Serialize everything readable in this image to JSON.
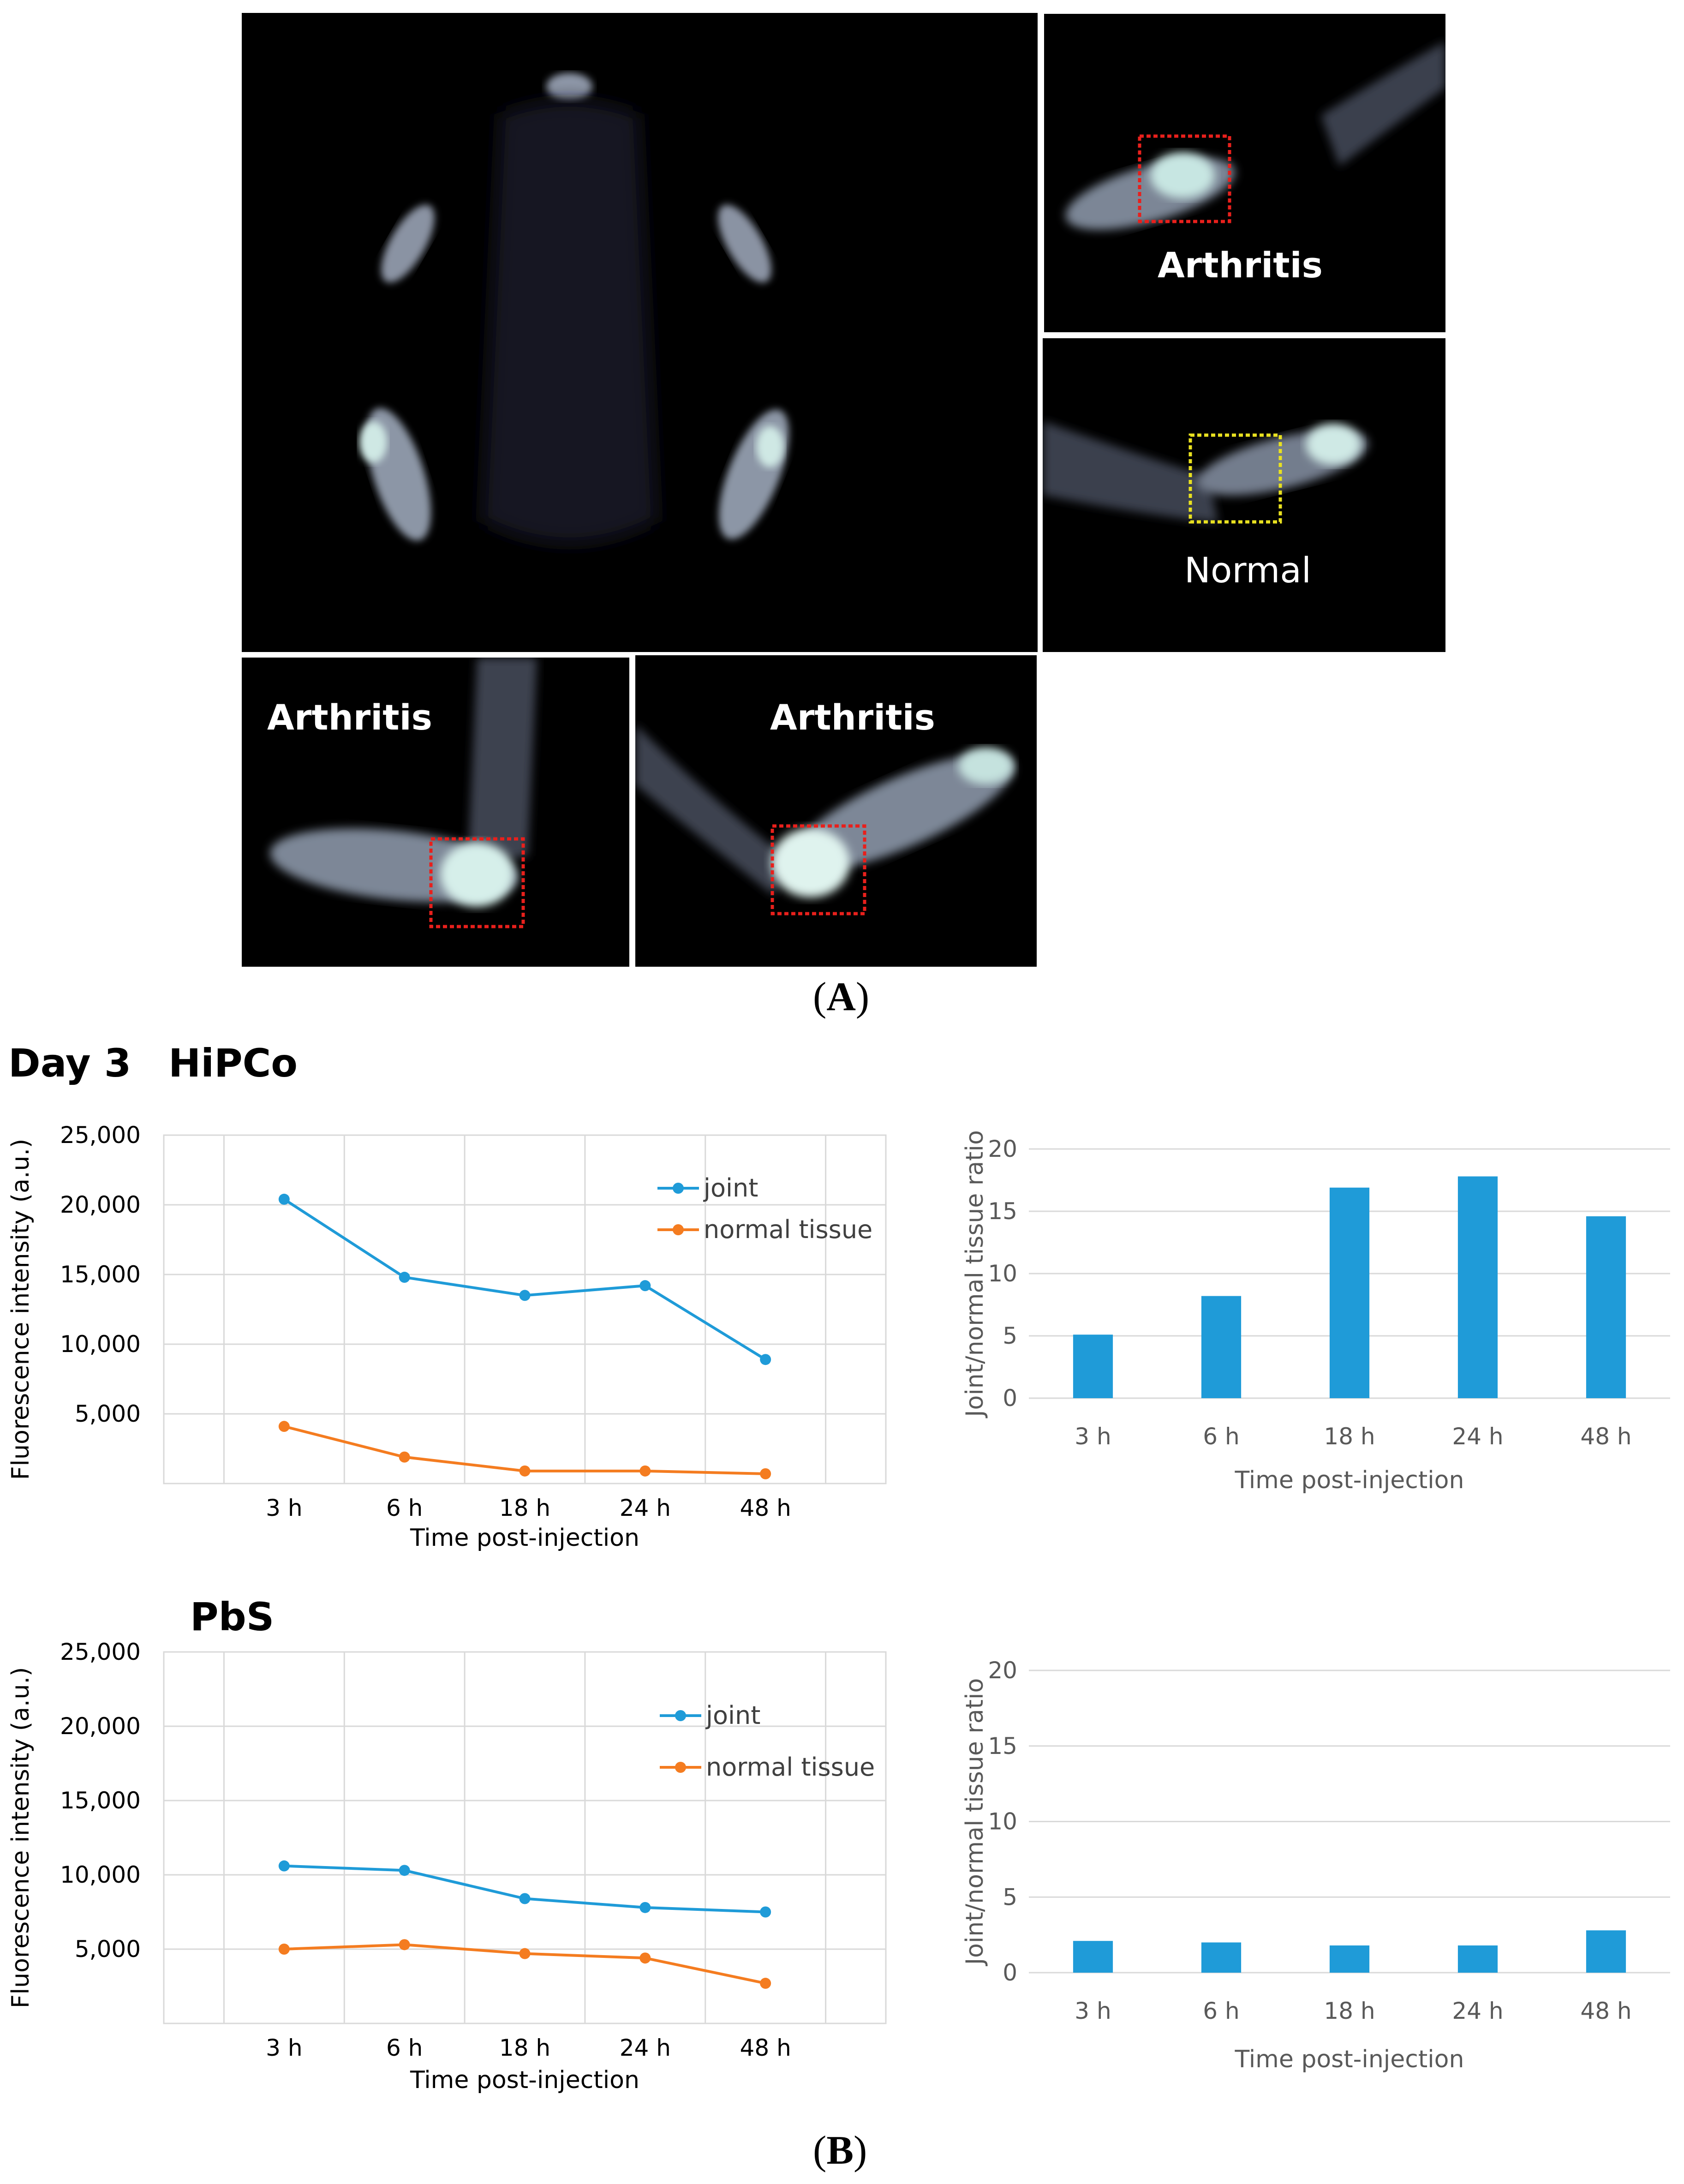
{
  "figure_a": {
    "letter": "A",
    "panels": [
      {
        "id": "whole-body",
        "label": ""
      },
      {
        "id": "top-right",
        "label": "Arthritis"
      },
      {
        "id": "middle-right",
        "label": "Normal"
      },
      {
        "id": "bottom-left",
        "label": "Arthritis"
      },
      {
        "id": "bottom-middle",
        "label": "Arthritis"
      }
    ],
    "roi_colors": {
      "arthritis": "#e8201c",
      "normal": "#e8e020"
    }
  },
  "figure_b": {
    "letter": "B",
    "day_label": "Day 3",
    "groups": [
      "HiPCo",
      "PbS"
    ]
  },
  "chart_data": [
    {
      "id": "hipco-line",
      "type": "line",
      "group": "HiPCo",
      "categories": [
        "3 h",
        "6 h",
        "18 h",
        "24 h",
        "48 h"
      ],
      "series": [
        {
          "name": "joint",
          "color": "#1f9bd8",
          "values": [
            20400,
            14800,
            13500,
            14200,
            8900
          ]
        },
        {
          "name": "normal tissue",
          "color": "#f47c20",
          "values": [
            4100,
            1900,
            900,
            900,
            700
          ]
        }
      ],
      "xlabel": "Time post-injection",
      "ylabel": "Fluorescence intensity (a.u.)",
      "ylim": [
        0,
        25000
      ],
      "yticks": [
        5000,
        10000,
        15000,
        20000,
        25000
      ],
      "ytick_labels": [
        "5,000",
        "10,000",
        "15,000",
        "20,000",
        "25,000"
      ],
      "grid": true,
      "legend": "top-right"
    },
    {
      "id": "hipco-bar",
      "type": "bar",
      "group": "HiPCo",
      "categories": [
        "3 h",
        "6 h",
        "18 h",
        "24 h",
        "48 h"
      ],
      "values": [
        5.1,
        8.2,
        16.9,
        17.8,
        14.6
      ],
      "color": "#1f9bd8",
      "xlabel": "Time post-injection",
      "ylabel": "Joint/normal tissue ratio",
      "ylim": [
        0,
        20
      ],
      "yticks": [
        0,
        5,
        10,
        15,
        20
      ],
      "grid": true
    },
    {
      "id": "pbs-line",
      "type": "line",
      "group": "PbS",
      "categories": [
        "3 h",
        "6 h",
        "18 h",
        "24 h",
        "48 h"
      ],
      "series": [
        {
          "name": "joint",
          "color": "#1f9bd8",
          "values": [
            10600,
            10300,
            8400,
            7800,
            7500
          ]
        },
        {
          "name": "normal tissue",
          "color": "#f47c20",
          "values": [
            5000,
            5300,
            4700,
            4400,
            2700
          ]
        }
      ],
      "xlabel": "Time post-injection",
      "ylabel": "Fluorescence intensity (a.u.)",
      "ylim": [
        0,
        25000
      ],
      "yticks": [
        5000,
        10000,
        15000,
        20000,
        25000
      ],
      "ytick_labels": [
        "5,000",
        "10,000",
        "15,000",
        "20,000",
        "25,000"
      ],
      "grid": true,
      "legend": "top-right"
    },
    {
      "id": "pbs-bar",
      "type": "bar",
      "group": "PbS",
      "categories": [
        "3 h",
        "6 h",
        "18 h",
        "24 h",
        "48 h"
      ],
      "values": [
        2.1,
        2.0,
        1.8,
        1.8,
        2.8
      ],
      "color": "#1f9bd8",
      "xlabel": "Time post-injection",
      "ylabel": "Joint/normal tissue ratio",
      "ylim": [
        0,
        20
      ],
      "yticks": [
        0,
        5,
        10,
        15,
        20
      ],
      "grid": true
    }
  ]
}
